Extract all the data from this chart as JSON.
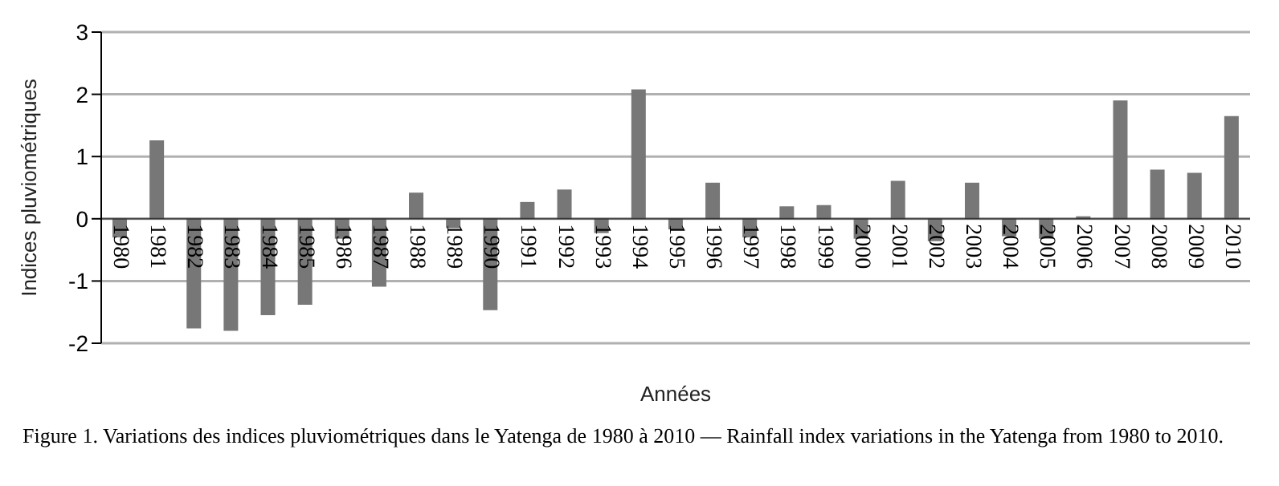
{
  "chart_data": {
    "type": "bar",
    "xlabel": "Années",
    "ylabel": "Indices pluviométriques",
    "categories": [
      "1980",
      "1981",
      "1982",
      "1983",
      "1984",
      "1985",
      "1986",
      "1987",
      "1988",
      "1989",
      "1990",
      "1991",
      "1992",
      "1993",
      "1994",
      "1995",
      "1996",
      "1997",
      "1998",
      "1999",
      "2000",
      "2001",
      "2002",
      "2003",
      "2004",
      "2005",
      "2006",
      "2007",
      "2008",
      "2009",
      "2010"
    ],
    "values": [
      -0.3,
      1.26,
      -1.76,
      -1.8,
      -1.55,
      -1.38,
      -0.32,
      -1.09,
      0.42,
      -0.15,
      -1.47,
      0.27,
      0.47,
      -0.23,
      2.08,
      -0.17,
      0.58,
      -0.3,
      0.2,
      0.22,
      -0.32,
      0.61,
      -0.36,
      0.58,
      -0.28,
      -0.32,
      0.04,
      1.9,
      0.79,
      0.74,
      1.65
    ],
    "color": "#777777",
    "ylim": [
      -2,
      3
    ],
    "yticks": [
      -2,
      -1,
      0,
      1,
      2,
      3
    ],
    "grid": "y",
    "annotations": [
      "Figure 1. Variations des indices pluviométriques dans le Yatenga de 1980 à 2010 — Rainfall index variations in the Yatenga from 1980 to 2010."
    ]
  }
}
